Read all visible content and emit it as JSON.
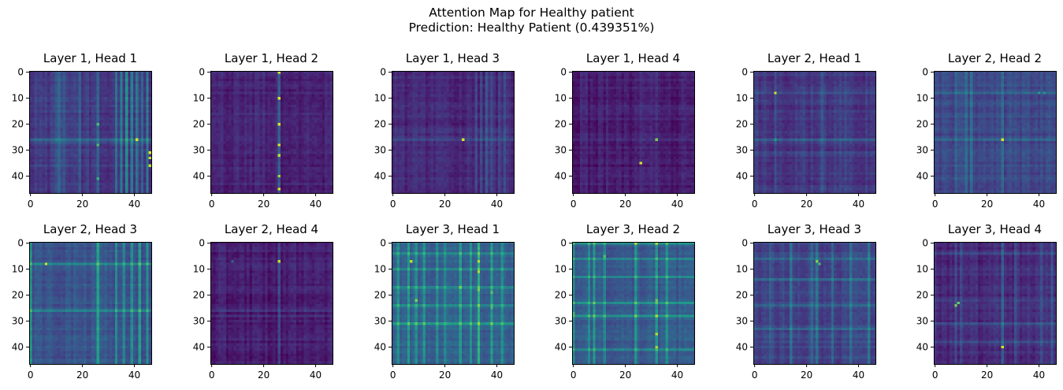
{
  "figure": {
    "title_line1": "Attention Map for Healthy patient",
    "title_line2": "Prediction: Healthy Patient (0.439351%)"
  },
  "chart_data": {
    "type": "heatmap",
    "colormap": "viridis",
    "matrix_size": 47,
    "axis_range": [
      0,
      46
    ],
    "x_ticks": [
      0,
      20,
      40
    ],
    "y_ticks": [
      0,
      10,
      20,
      30,
      40
    ],
    "grid": false,
    "panels": [
      {
        "title": "Layer 1, Head 1",
        "base": 0.17,
        "cols": [
          [
            10,
            0.12
          ],
          [
            11,
            0.13
          ],
          [
            12,
            0.1
          ],
          [
            13,
            0.1
          ],
          [
            19,
            0.08
          ],
          [
            22,
            0.07
          ],
          [
            26,
            0.12
          ],
          [
            33,
            0.2
          ],
          [
            35,
            0.24
          ],
          [
            37,
            0.3
          ],
          [
            39,
            0.26
          ],
          [
            41,
            0.22
          ],
          [
            43,
            0.18
          ],
          [
            45,
            0.28
          ]
        ],
        "rows": [
          [
            26,
            0.12
          ],
          [
            27,
            0.06
          ]
        ],
        "spots": [
          [
            20,
            26,
            0.7
          ],
          [
            26,
            41,
            0.95
          ],
          [
            28,
            26,
            0.7
          ],
          [
            31,
            46,
            0.95
          ],
          [
            33,
            46,
            0.9
          ],
          [
            36,
            46,
            0.9
          ],
          [
            41,
            26,
            0.65
          ]
        ]
      },
      {
        "title": "Layer 1, Head 2",
        "base": 0.1,
        "cols": [
          [
            26,
            0.22
          ]
        ],
        "rows": [],
        "spots": [
          [
            0,
            26,
            0.95
          ],
          [
            10,
            26,
            0.95
          ],
          [
            20,
            26,
            0.95
          ],
          [
            28,
            26,
            0.95
          ],
          [
            32,
            26,
            0.9
          ],
          [
            40,
            26,
            0.85
          ],
          [
            45,
            26,
            0.95
          ]
        ]
      },
      {
        "title": "Layer 1, Head 3",
        "base": 0.12,
        "cols": [
          [
            32,
            0.08
          ],
          [
            34,
            0.1
          ],
          [
            36,
            0.12
          ],
          [
            38,
            0.1
          ],
          [
            41,
            0.12
          ],
          [
            43,
            0.1
          ]
        ],
        "rows": [
          [
            26,
            0.08
          ]
        ],
        "spots": [
          [
            26,
            27,
            0.95
          ]
        ]
      },
      {
        "title": "Layer 1, Head 4",
        "base": 0.08,
        "cols": [
          [
            26,
            0.05
          ],
          [
            32,
            0.06
          ]
        ],
        "rows": [
          [
            26,
            0.05
          ]
        ],
        "spots": [
          [
            26,
            32,
            0.8
          ],
          [
            35,
            26,
            0.95
          ]
        ]
      },
      {
        "title": "Layer 2, Head 1",
        "base": 0.16,
        "cols": [
          [
            8,
            0.1
          ],
          [
            26,
            0.08
          ],
          [
            33,
            0.08
          ],
          [
            35,
            0.07
          ]
        ],
        "rows": [
          [
            8,
            0.1
          ],
          [
            26,
            0.12
          ],
          [
            31,
            0.06
          ]
        ],
        "spots": [
          [
            8,
            8,
            0.95
          ],
          [
            26,
            8,
            0.55
          ]
        ]
      },
      {
        "title": "Layer 2, Head 2",
        "base": 0.22,
        "cols": [
          [
            8,
            0.12
          ],
          [
            12,
            0.15
          ],
          [
            14,
            0.12
          ],
          [
            26,
            0.15
          ]
        ],
        "rows": [
          [
            8,
            0.12
          ],
          [
            26,
            0.12
          ]
        ],
        "spots": [
          [
            8,
            40,
            0.55
          ],
          [
            8,
            42,
            0.5
          ],
          [
            26,
            26,
            0.95
          ]
        ]
      },
      {
        "title": "Layer 2, Head 3",
        "base": 0.26,
        "cols": [
          [
            0,
            0.28
          ],
          [
            26,
            0.32
          ],
          [
            33,
            0.2
          ],
          [
            36,
            0.22
          ],
          [
            39,
            0.24
          ],
          [
            42,
            0.26
          ],
          [
            45,
            0.24
          ]
        ],
        "rows": [
          [
            8,
            0.2
          ],
          [
            26,
            0.18
          ]
        ],
        "spots": [
          [
            8,
            6,
            0.95
          ],
          [
            26,
            26,
            0.6
          ]
        ]
      },
      {
        "title": "Layer 2, Head 4",
        "base": 0.08,
        "cols": [
          [
            26,
            0.1
          ],
          [
            31,
            0.06
          ]
        ],
        "rows": [
          [
            26,
            0.08
          ],
          [
            28,
            0.06
          ]
        ],
        "spots": [
          [
            7,
            26,
            0.9
          ],
          [
            7,
            8,
            0.3
          ]
        ]
      },
      {
        "title": "Layer 3, Head 1",
        "base": 0.3,
        "cols": [
          [
            2,
            0.2
          ],
          [
            6,
            0.22
          ],
          [
            9,
            0.18
          ],
          [
            12,
            0.2
          ],
          [
            17,
            0.2
          ],
          [
            20,
            0.18
          ],
          [
            26,
            0.24
          ],
          [
            30,
            0.2
          ],
          [
            33,
            0.3
          ],
          [
            38,
            0.22
          ],
          [
            42,
            0.2
          ]
        ],
        "rows": [
          [
            4,
            0.12
          ],
          [
            10,
            0.16
          ],
          [
            17,
            0.14
          ],
          [
            24,
            0.14
          ],
          [
            31,
            0.22
          ]
        ],
        "spots": [
          [
            7,
            7,
            0.9
          ],
          [
            7,
            33,
            0.9
          ],
          [
            11,
            33,
            0.9
          ],
          [
            17,
            26,
            0.8
          ],
          [
            18,
            33,
            0.8
          ],
          [
            19,
            38,
            0.75
          ],
          [
            22,
            9,
            0.8
          ],
          [
            25,
            38,
            0.7
          ]
        ]
      },
      {
        "title": "Layer 3, Head 2",
        "base": 0.28,
        "cols": [
          [
            0,
            0.2
          ],
          [
            6,
            0.22
          ],
          [
            8,
            0.25
          ],
          [
            12,
            0.2
          ],
          [
            24,
            0.22
          ],
          [
            32,
            0.26
          ],
          [
            36,
            0.18
          ]
        ],
        "rows": [
          [
            0,
            0.2
          ],
          [
            6,
            0.2
          ],
          [
            13,
            0.18
          ],
          [
            23,
            0.2
          ],
          [
            28,
            0.22
          ],
          [
            41,
            0.18
          ]
        ],
        "spots": [
          [
            0,
            24,
            0.9
          ],
          [
            0,
            32,
            0.9
          ],
          [
            5,
            12,
            0.7
          ],
          [
            22,
            32,
            0.75
          ],
          [
            27,
            0,
            0.7
          ],
          [
            28,
            24,
            0.8
          ],
          [
            28,
            32,
            0.9
          ],
          [
            35,
            32,
            0.9
          ],
          [
            40,
            32,
            0.85
          ]
        ]
      },
      {
        "title": "Layer 3, Head 3",
        "base": 0.2,
        "cols": [
          [
            6,
            0.12
          ],
          [
            14,
            0.14
          ],
          [
            22,
            0.14
          ],
          [
            24,
            0.16
          ],
          [
            30,
            0.14
          ],
          [
            37,
            0.14
          ],
          [
            44,
            0.16
          ]
        ],
        "rows": [
          [
            6,
            0.1
          ],
          [
            14,
            0.12
          ],
          [
            24,
            0.12
          ],
          [
            33,
            0.1
          ]
        ],
        "spots": [
          [
            7,
            24,
            0.8
          ],
          [
            8,
            25,
            0.7
          ],
          [
            14,
            44,
            0.5
          ]
        ]
      },
      {
        "title": "Layer 3, Head 4",
        "base": 0.12,
        "cols": [
          [
            8,
            0.14
          ],
          [
            10,
            0.1
          ],
          [
            26,
            0.2
          ],
          [
            31,
            0.1
          ],
          [
            41,
            0.1
          ],
          [
            45,
            0.12
          ]
        ],
        "rows": [
          [
            4,
            0.08
          ],
          [
            22,
            0.08
          ],
          [
            31,
            0.1
          ],
          [
            38,
            0.08
          ]
        ],
        "spots": [
          [
            23,
            9,
            0.75
          ],
          [
            24,
            8,
            0.8
          ],
          [
            40,
            26,
            0.95
          ]
        ]
      }
    ]
  }
}
